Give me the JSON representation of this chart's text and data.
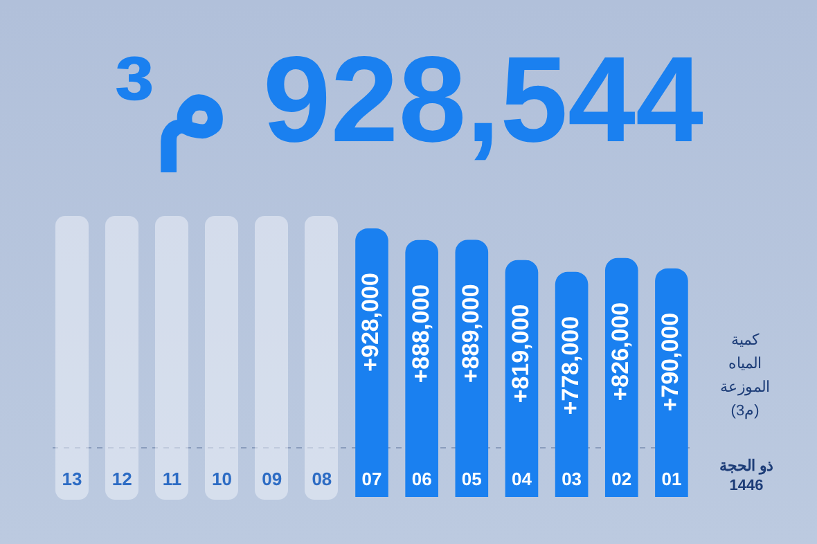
{
  "chart_data": {
    "type": "bar",
    "title": "928,544 م³",
    "ylabel": "كمية المياه الموزعة (م3)",
    "xlabel": "ذو الحجة 1446",
    "categories": [
      "13",
      "12",
      "11",
      "10",
      "09",
      "08",
      "07",
      "06",
      "05",
      "04",
      "03",
      "02",
      "01"
    ],
    "values": [
      null,
      null,
      null,
      null,
      null,
      null,
      928000,
      888000,
      889000,
      819000,
      778000,
      826000,
      790000
    ],
    "value_labels": [
      null,
      null,
      null,
      null,
      null,
      null,
      "+928,000",
      "+888,000",
      "+889,000",
      "+819,000",
      "+778,000",
      "+826,000",
      "+790,000"
    ],
    "color": "#1a80f0"
  }
}
